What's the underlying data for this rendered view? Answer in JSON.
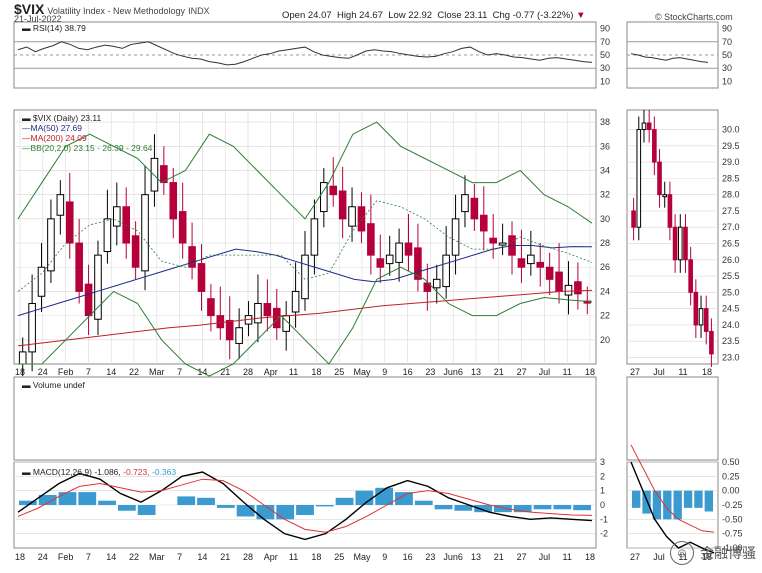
{
  "header": {
    "symbol": "$VIX",
    "name": "Volatility Index - New Methodology",
    "exchange": "INDX",
    "date": "21-Jul-2022",
    "open_label": "Open",
    "open": "24.07",
    "high_label": "High",
    "high": "24.67",
    "low_label": "Low",
    "low": "22.92",
    "close_label": "Close",
    "close": "23.11",
    "chg_label": "Chg",
    "chg": "-0.77 (-3.22%)",
    "copyright": "© StockCharts.com"
  },
  "legend": {
    "rsi": "RSI(14) 38.79",
    "price": "$VIX (Daily) 23.11",
    "ma50": "MA(50) 27.69",
    "ma200": "MA(200) 24.09",
    "bb": "BB(20,2.0) 23.15 - 26.39 - 29.64",
    "volume": "Volume undef",
    "macd_prefix": "MACD(12,26,9)",
    "macd_val": "-1.086,",
    "macd_sig": "-0.723,",
    "macd_hist": "-0.363"
  },
  "colors": {
    "up": "#000000",
    "down": "#b5003a",
    "ma50": "#1f2a8c",
    "ma200": "#c0202a",
    "bb": "#2e7d32",
    "hist": "#3b9bd1",
    "signal": "#d33",
    "grid": "#d8d8d8"
  },
  "watermark": "金融博骚",
  "chart_data": [
    {
      "type": "line",
      "title": "RSI(14) 38.79",
      "yticks": [
        10,
        30,
        50,
        70,
        90
      ],
      "ylim": [
        0,
        100
      ],
      "values": [
        58,
        62,
        55,
        60,
        64,
        70,
        66,
        60,
        58,
        62,
        65,
        63,
        60,
        66,
        68,
        70,
        64,
        58,
        52,
        48,
        45,
        44,
        40,
        38,
        35,
        36,
        40,
        45,
        50,
        52,
        56,
        58,
        60,
        62,
        55,
        50,
        48,
        46,
        45,
        50,
        56,
        58,
        56,
        55,
        52,
        50,
        48,
        47,
        48,
        52,
        55,
        60,
        62,
        55,
        50,
        52,
        50,
        47,
        46,
        44,
        42,
        45,
        46,
        44,
        42,
        40,
        38.79
      ]
    },
    {
      "type": "candlestick",
      "title": "$VIX (Daily) 23.11",
      "ylim": [
        18,
        39
      ],
      "yticks": [
        20,
        22,
        24,
        26,
        28,
        30,
        32,
        34,
        36,
        38
      ],
      "x_labels": [
        "18",
        "24",
        "Feb",
        "7",
        "14",
        "22",
        "Mar",
        "7",
        "14",
        "21",
        "28",
        "Apr",
        "11",
        "18",
        "25",
        "May",
        "9",
        "16",
        "23",
        "Jun6",
        "13",
        "21",
        "27",
        "Jul",
        "11",
        "18"
      ],
      "close": [
        19,
        23,
        26,
        30,
        32,
        28,
        24,
        22,
        27,
        30,
        31,
        28,
        26,
        32,
        35,
        33,
        30,
        28,
        26,
        24,
        22,
        21,
        20,
        21,
        22,
        23,
        22,
        21,
        22,
        24,
        27,
        30,
        33,
        32,
        30,
        31,
        29,
        27,
        26,
        27,
        28,
        27,
        25,
        24,
        25,
        27,
        30,
        32,
        30,
        29,
        28,
        28,
        27,
        26,
        27,
        26,
        25,
        24,
        24.5,
        23.8,
        23.11
      ],
      "ma50": [
        22,
        22.5,
        23,
        23.5,
        24,
        24.5,
        25,
        25.5,
        26,
        26.5,
        27,
        27.5,
        27.3,
        27,
        26.5,
        26,
        25.5,
        25,
        24.8,
        25,
        25.5,
        26,
        26.5,
        27,
        27.5,
        27.8,
        27.8,
        27.6,
        27.7,
        27.69
      ],
      "ma200": [
        19.5,
        19.8,
        20.1,
        20.4,
        20.7,
        21,
        21.2,
        21.5,
        21.8,
        22,
        22.2,
        22.5,
        22.8,
        23,
        23.2,
        23.4,
        23.6,
        23.8,
        24,
        24.09
      ],
      "bb_upper": [
        30,
        33,
        36,
        37,
        36,
        35,
        33,
        34,
        37,
        36,
        34,
        32,
        30,
        33,
        37,
        38,
        36,
        35,
        34,
        33,
        33,
        34,
        32,
        31,
        29.64
      ],
      "bb_lower": [
        18,
        18,
        20,
        22,
        24,
        23,
        20,
        18,
        17,
        18,
        20,
        22,
        20,
        18,
        21,
        25,
        26,
        25,
        23,
        22,
        22,
        23,
        23.5,
        23.3,
        23.15
      ]
    },
    {
      "type": "line",
      "title": "MACD(12,26,9) -1.086, -0.723, -0.363",
      "ylim": [
        -3,
        3
      ],
      "yticks": [
        -2,
        -1,
        0,
        1,
        2,
        3
      ],
      "macd": [
        -0.5,
        0.5,
        1.5,
        2.2,
        1.8,
        0.8,
        0.2,
        1.0,
        2.0,
        2.3,
        1.5,
        0.2,
        -1.0,
        -2.0,
        -2.4,
        -2.0,
        -1.0,
        0.2,
        1.2,
        1.7,
        1.3,
        0.5,
        0,
        -0.5,
        -0.8,
        -1.0,
        -0.9,
        -1.0,
        -1.086
      ],
      "signal": [
        -0.8,
        -0.2,
        0.6,
        1.3,
        1.5,
        1.2,
        0.9,
        1.0,
        1.4,
        1.8,
        1.7,
        1.0,
        0,
        -1.0,
        -1.7,
        -1.9,
        -1.5,
        -0.8,
        0,
        0.8,
        1.0,
        0.8,
        0.4,
        0,
        -0.3,
        -0.5,
        -0.6,
        -0.7,
        -0.723
      ],
      "histogram": [
        0.3,
        0.7,
        0.9,
        0.9,
        0.3,
        -0.4,
        -0.7,
        0,
        0.6,
        0.5,
        -0.2,
        -0.8,
        -1.0,
        -1.0,
        -0.7,
        -0.1,
        0.5,
        1.0,
        1.2,
        0.9,
        0.3,
        -0.3,
        -0.4,
        -0.5,
        -0.5,
        -0.5,
        -0.3,
        -0.3,
        -0.363
      ]
    }
  ]
}
